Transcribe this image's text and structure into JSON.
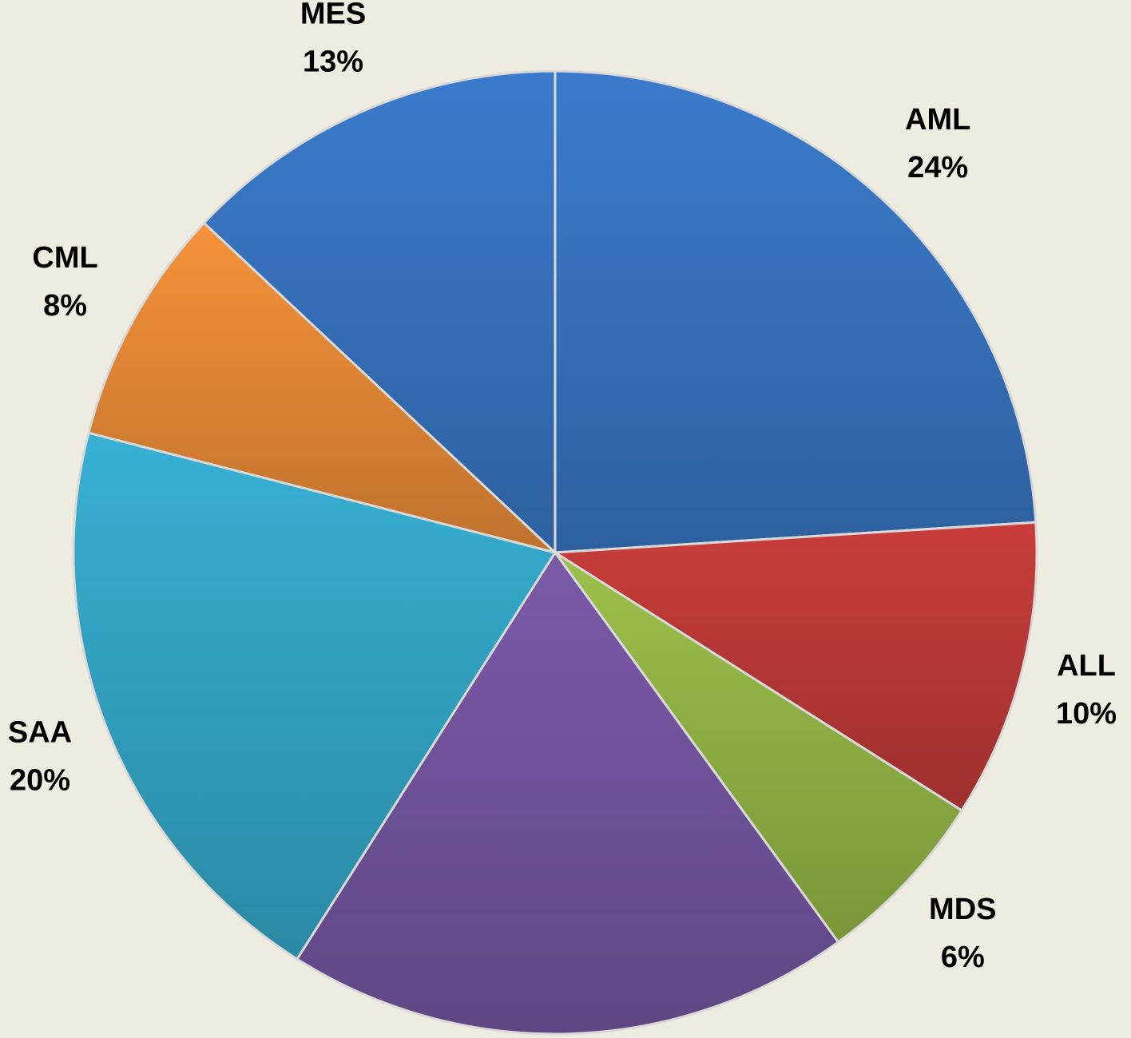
{
  "chart_data": {
    "type": "pie",
    "categories": [
      "AML",
      "ALL",
      "MDS",
      null,
      "SAA",
      "CML",
      "MES"
    ],
    "values": [
      24,
      10,
      6,
      19,
      20,
      8,
      13
    ],
    "value_labels": [
      "24%",
      "10%",
      "6%",
      null,
      "20%",
      "8%",
      "13%"
    ],
    "colors": [
      "#3b7bcc",
      "#c93d3b",
      "#9cc04a",
      "#7a5aa8",
      "#37b0d3",
      "#f5923a",
      "#3b7bcc"
    ]
  }
}
